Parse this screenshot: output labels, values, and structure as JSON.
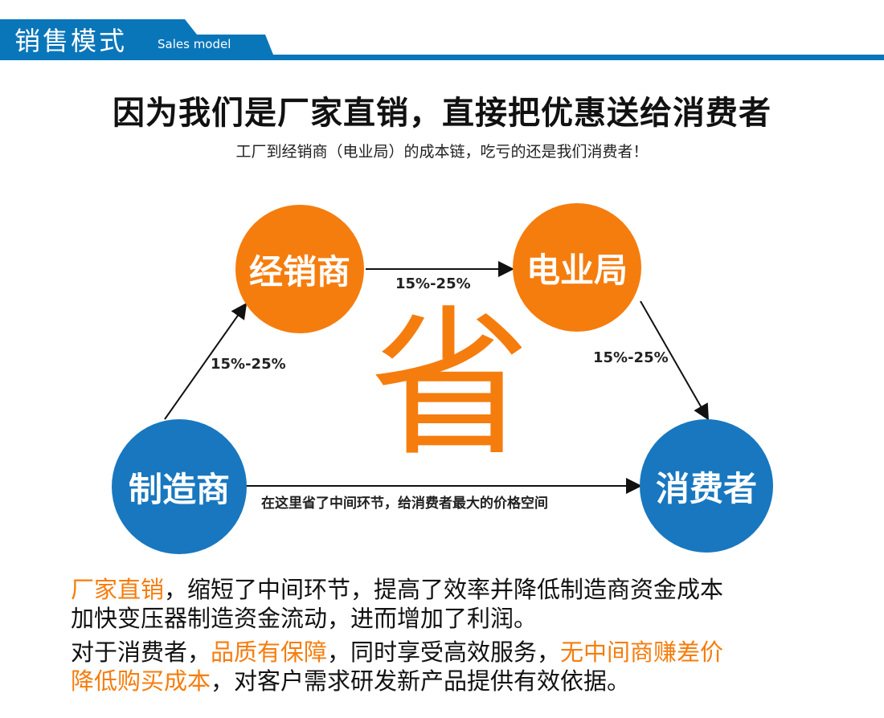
{
  "header": {
    "title_cn": "销售模式",
    "title_en": "Sales model",
    "color": "#0a76ba"
  },
  "headline": "因为我们是厂家直销，直接把优惠送给消费者",
  "subheadline": "工厂到经销商（电业局）的成本链，吃亏的还是我们消费者！",
  "diagram": {
    "nodes": {
      "dealer": "经销商",
      "power_bureau": "电业局",
      "manufacturer": "制造商",
      "consumer": "消费者"
    },
    "edges": {
      "manufacturer_dealer": "15%-25%",
      "dealer_bureau": "15%-25%",
      "bureau_consumer": "15%-25%",
      "manufacturer_consumer": "在这里省了中间环节，给消费者最大的价格空间"
    },
    "center_char": "省",
    "colors": {
      "orange": "#f57d0e",
      "blue": "#1877bf"
    }
  },
  "paragraphs": {
    "p1_hl": "厂家直销",
    "p1_rest": "，缩短了中间环节，提高了效率并降低制造商资金成本",
    "p1_line2": "加快变压器制造资金流动，进而增加了利润。",
    "p2_a": "对于消费者，",
    "p2_hl1": "品质有保障",
    "p2_b": "，同时享受高效服务，",
    "p2_hl2": "无中间商赚差价",
    "p2_hl3": "降低购买成本",
    "p2_c": "，对客户需求研发新产品提供有效依据。"
  }
}
